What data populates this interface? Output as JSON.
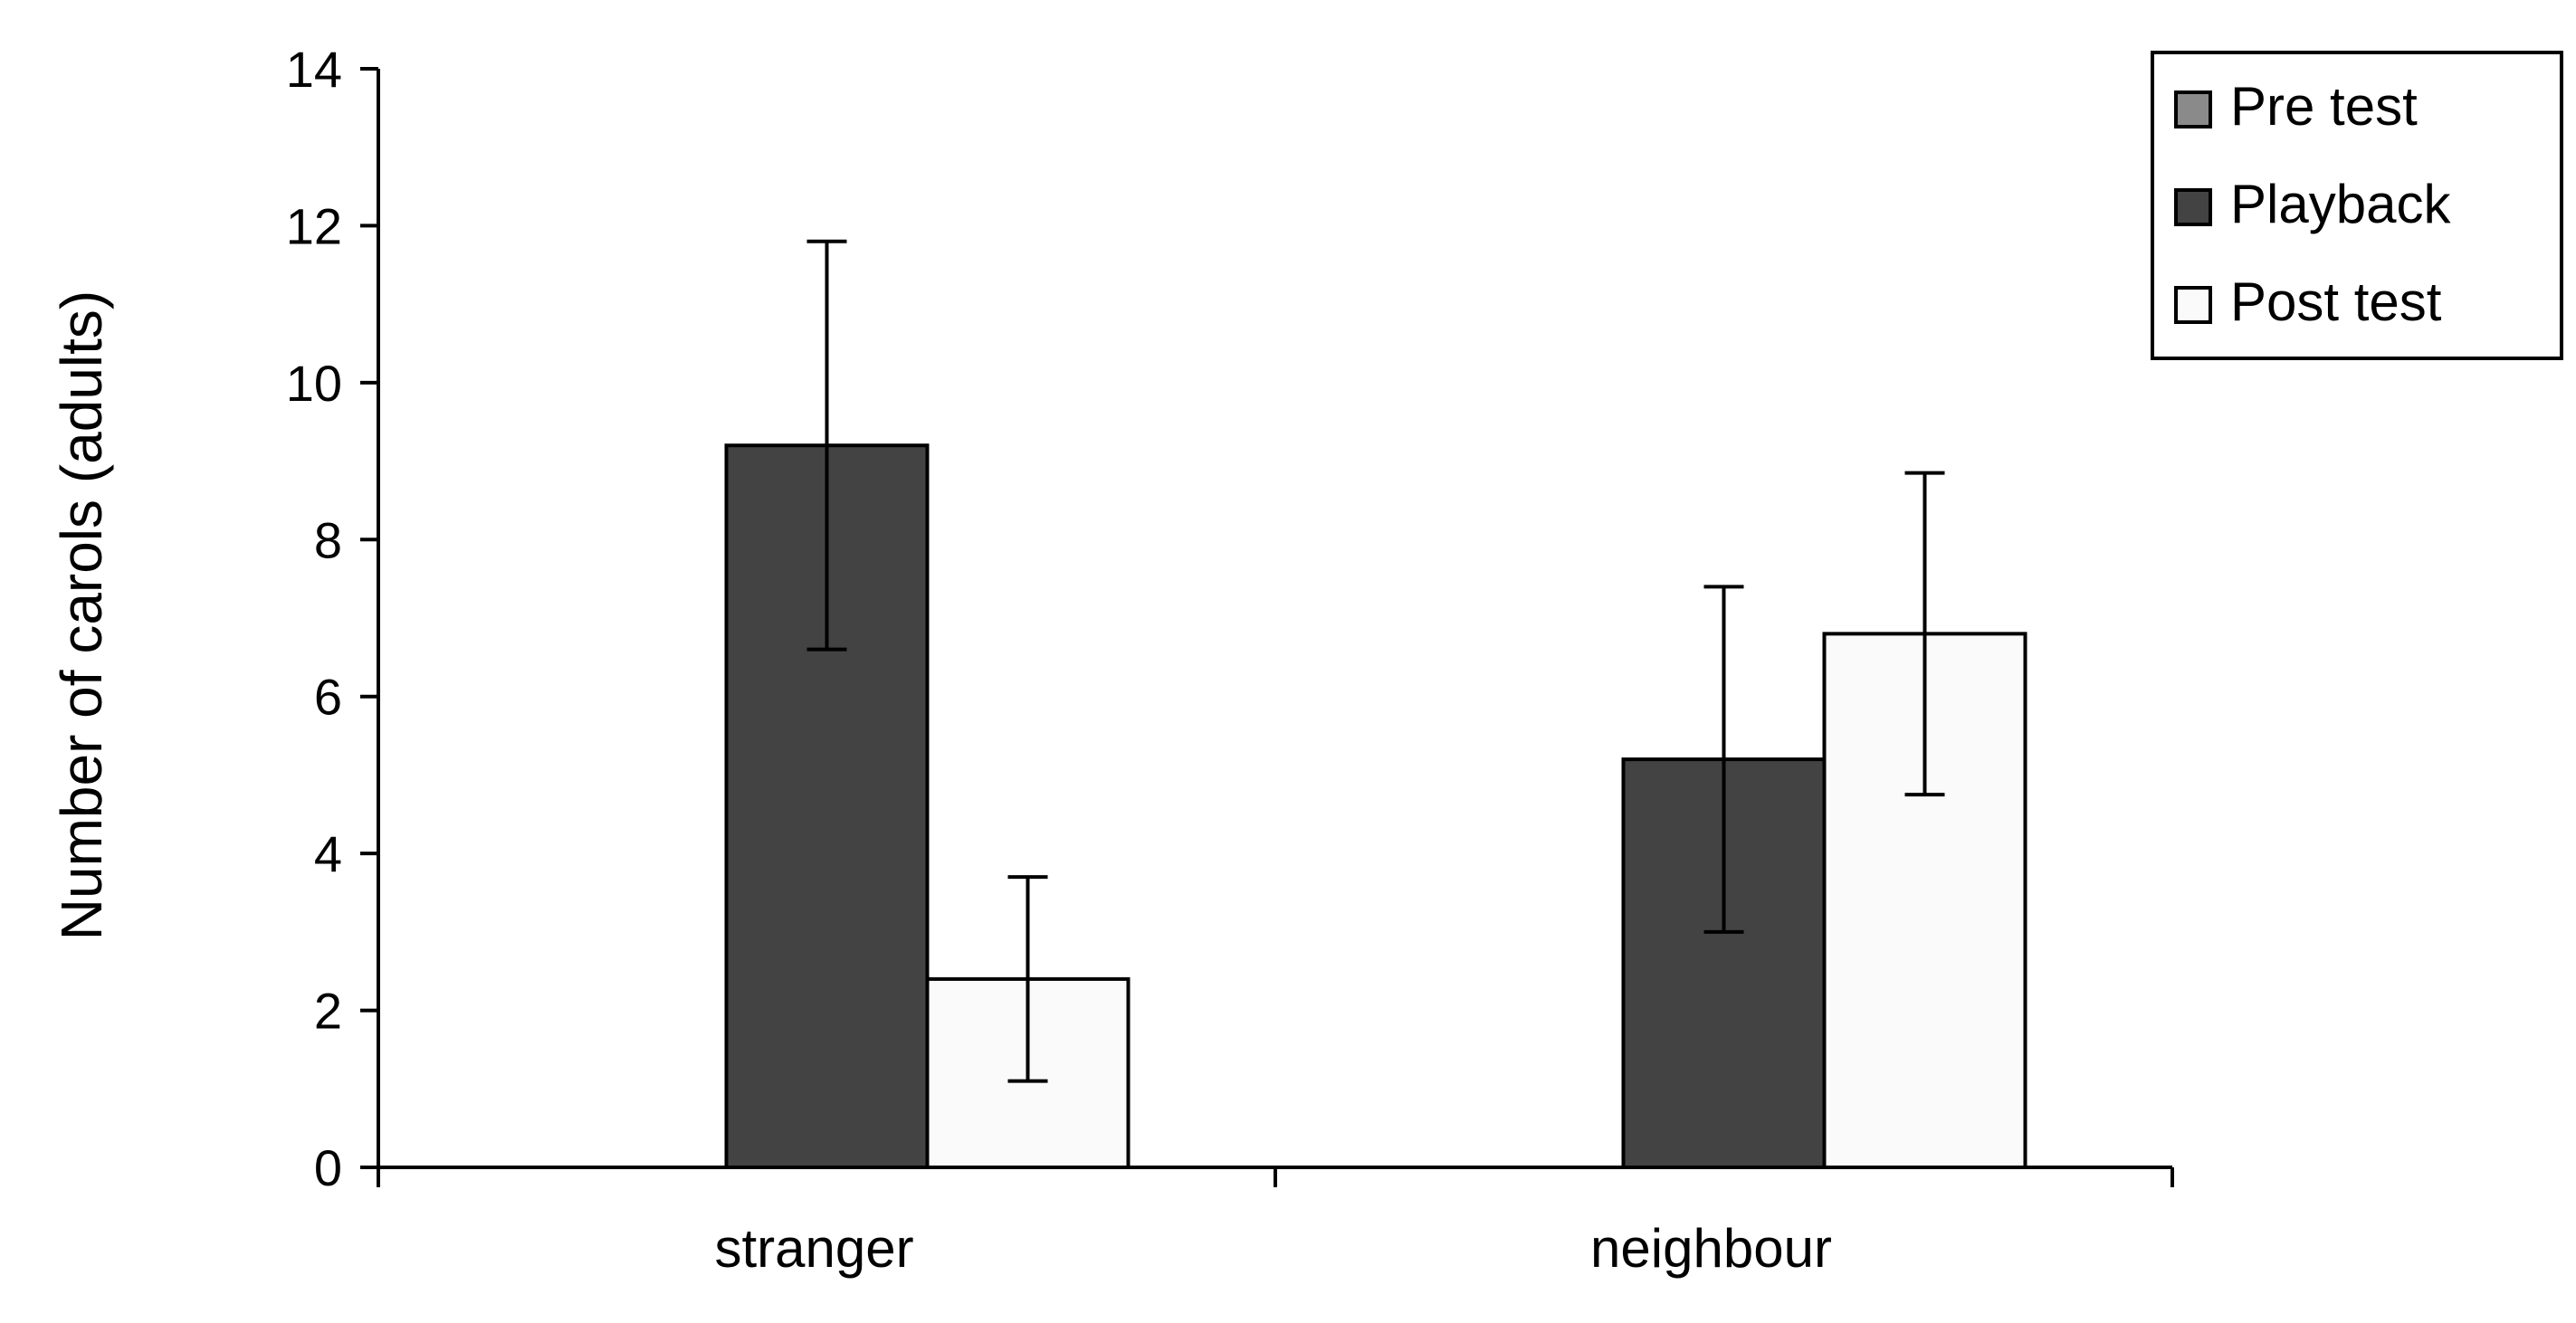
{
  "chart_data": {
    "type": "bar",
    "ylabel": "Number of carols (adults)",
    "xlabel": "",
    "ylim": [
      0,
      14
    ],
    "yticks": [
      0,
      2,
      4,
      6,
      8,
      10,
      12,
      14
    ],
    "grid": false,
    "legend_position": "top-right",
    "categories": [
      "stranger",
      "neighbour"
    ],
    "series": [
      {
        "name": "Pre test",
        "color": "#8a8a8a",
        "values": [
          0,
          0
        ],
        "errors": [
          0,
          0
        ]
      },
      {
        "name": "Playback",
        "color": "#434343",
        "values": [
          9.2,
          5.2
        ],
        "errors": [
          2.6,
          2.2
        ]
      },
      {
        "name": "Post test",
        "color": "#fafafa",
        "values": [
          2.4,
          6.8
        ],
        "errors": [
          1.3,
          2.05
        ]
      }
    ]
  }
}
